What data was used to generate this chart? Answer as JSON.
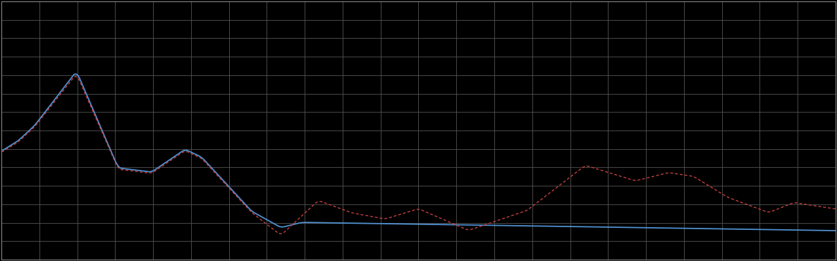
{
  "background_color": "#000000",
  "plot_bg_color": "#000000",
  "grid_color": "#555555",
  "blue_line_color": "#5599dd",
  "red_line_color": "#cc4444",
  "n_points": 600,
  "grid_cols": 22,
  "grid_rows": 14,
  "spine_color": "#888888"
}
